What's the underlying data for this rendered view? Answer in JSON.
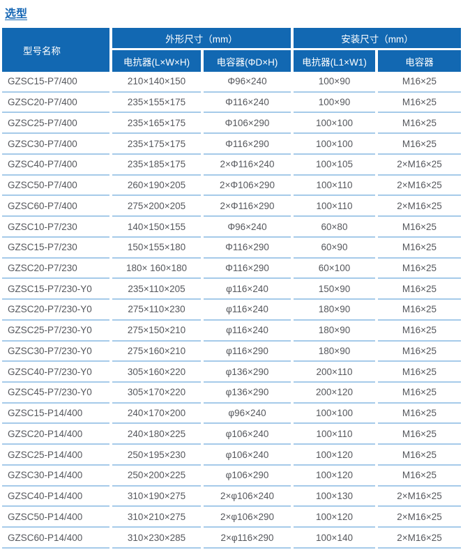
{
  "page": {
    "title": "选型"
  },
  "colors": {
    "header_bg": "#1268b2",
    "title_blue": "#1566b4",
    "row_line": "#a5cae9",
    "body_text": "#55575c"
  },
  "table": {
    "header": {
      "model_col": "型号名称",
      "group_outline": "外形尺寸（mm）",
      "group_install": "安装尺寸（mm）",
      "sub_reactor_lwh": "电抗器(L×W×H)",
      "sub_capacitor_dh": "电容器(ΦD×H)",
      "sub_reactor_l1w1": "电抗器(L1×W1)",
      "sub_capacitor": "电容器"
    },
    "rows": [
      [
        "GZSC15-P7/400",
        "210×140×150",
        "Φ96×240",
        "100×90",
        "M16×25"
      ],
      [
        "GZSC20-P7/400",
        "235×155×175",
        "Φ116×240",
        "100×90",
        "M16×25"
      ],
      [
        "GZSC25-P7/400",
        "235×165×175",
        "Φ106×290",
        "100×100",
        "M16×25"
      ],
      [
        "GZSC30-P7/400",
        "235×175×175",
        "Φ116×290",
        "100×100",
        "M16×25"
      ],
      [
        "GZSC40-P7/400",
        "235×185×175",
        "2×Φ116×240",
        "100×105",
        "2×M16×25"
      ],
      [
        "GZSC50-P7/400",
        "260×190×205",
        "2×Φ106×290",
        "100×110",
        "2×M16×25"
      ],
      [
        "GZSC60-P7/400",
        "275×200×205",
        "2×Φ116×290",
        "100×110",
        "2×M16×25"
      ],
      [
        "GZSC10-P7/230",
        "140×150×155",
        "Φ96×240",
        "60×80",
        "M16×25"
      ],
      [
        "GZSC15-P7/230",
        "150×155×180",
        "Φ116×290",
        "60×90",
        "M16×25"
      ],
      [
        "GZSC20-P7/230",
        "180× 160×180",
        "Φ116×290",
        "60×100",
        "M16×25"
      ],
      [
        "GZSC15-P7/230-Y0",
        "235×110×205",
        "φ116×240",
        "150×90",
        "M16×25"
      ],
      [
        "GZSC20-P7/230-Y0",
        "275×110×230",
        "φ116×240",
        "180×90",
        "M16×25"
      ],
      [
        "GZSC25-P7/230-Y0",
        "275×150×210",
        "φ116×240",
        "180×90",
        "M16×25"
      ],
      [
        "GZSC30-P7/230-Y0",
        "275×160×210",
        "φ116×290",
        "180×90",
        "M16×25"
      ],
      [
        "GZSC40-P7/230-Y0",
        "305×160×220",
        "φ136×290",
        "200×110",
        "M16×25"
      ],
      [
        "GZSC45-P7/230-Y0",
        "305×170×220",
        "φ136×290",
        "200×120",
        "M16×25"
      ],
      [
        "GZSC15-P14/400",
        "240×170×200",
        "φ96×240",
        "100×100",
        "M16×25"
      ],
      [
        "GZSC20-P14/400",
        "240×180×225",
        "φ106×240",
        "100×110",
        "M16×25"
      ],
      [
        "GZSC25-P14/400",
        "250×195×230",
        "φ106×240",
        "100×120",
        "M16×25"
      ],
      [
        "GZSC30-P14/400",
        "250×200×225",
        "φ106×290",
        "100×120",
        "M16×25"
      ],
      [
        "GZSC40-P14/400",
        "310×190×275",
        "2×φ106×240",
        "100×130",
        "2×M16×25"
      ],
      [
        "GZSC50-P14/400",
        "310×210×275",
        "2×φ106×290",
        "100×120",
        "2×M16×25"
      ],
      [
        "GZSC60-P14/400",
        "310×230×285",
        "2×φ116×290",
        "100×140",
        "2×M16×25"
      ]
    ]
  }
}
